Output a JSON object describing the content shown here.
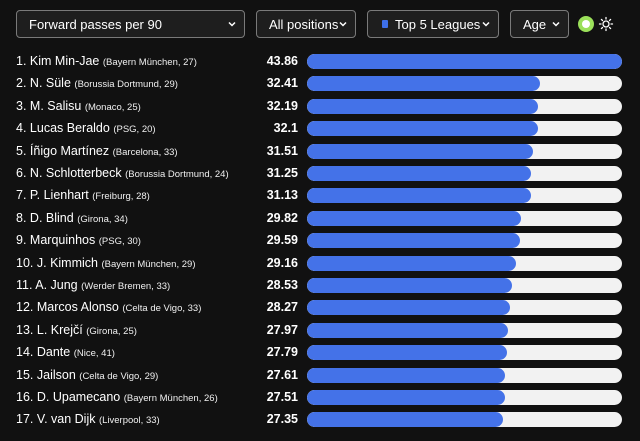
{
  "filters": {
    "metric": "Forward passes per 90",
    "position": "All positions",
    "league": "Top 5 Leagues",
    "age": "Age"
  },
  "colors": {
    "background": "#111111",
    "bar_fill": "#4472e8",
    "bar_track": "#f2f2f2",
    "toggle": "#9be05a"
  },
  "max_value": 43.86,
  "players": [
    {
      "rank": "1.",
      "name": "Kim Min-Jae",
      "meta": "(Bayern München, 27)",
      "value": "43.86"
    },
    {
      "rank": "2.",
      "name": "N. Süle",
      "meta": "(Borussia Dortmund, 29)",
      "value": "32.41"
    },
    {
      "rank": "3.",
      "name": "M. Salisu",
      "meta": "(Monaco, 25)",
      "value": "32.19"
    },
    {
      "rank": "4.",
      "name": "Lucas Beraldo",
      "meta": "(PSG, 20)",
      "value": "32.1"
    },
    {
      "rank": "5.",
      "name": "Íñigo Martínez",
      "meta": "(Barcelona, 33)",
      "value": "31.51"
    },
    {
      "rank": "6.",
      "name": "N. Schlotterbeck",
      "meta": "(Borussia Dortmund, 24)",
      "value": "31.25"
    },
    {
      "rank": "7.",
      "name": "P. Lienhart",
      "meta": "(Freiburg, 28)",
      "value": "31.13"
    },
    {
      "rank": "8.",
      "name": "D. Blind",
      "meta": "(Girona, 34)",
      "value": "29.82"
    },
    {
      "rank": "9.",
      "name": "Marquinhos",
      "meta": "(PSG, 30)",
      "value": "29.59"
    },
    {
      "rank": "10.",
      "name": "J. Kimmich",
      "meta": "(Bayern München, 29)",
      "value": "29.16"
    },
    {
      "rank": "11.",
      "name": "A. Jung",
      "meta": "(Werder Bremen, 33)",
      "value": "28.53"
    },
    {
      "rank": "12.",
      "name": "Marcos Alonso",
      "meta": "(Celta de Vigo, 33)",
      "value": "28.27"
    },
    {
      "rank": "13.",
      "name": "L. Krejčí",
      "meta": "(Girona, 25)",
      "value": "27.97"
    },
    {
      "rank": "14.",
      "name": "Dante",
      "meta": "(Nice, 41)",
      "value": "27.79"
    },
    {
      "rank": "15.",
      "name": "Jailson",
      "meta": "(Celta de Vigo, 29)",
      "value": "27.61"
    },
    {
      "rank": "16.",
      "name": "D. Upamecano",
      "meta": "(Bayern München, 26)",
      "value": "27.51"
    },
    {
      "rank": "17.",
      "name": "V. van Dijk",
      "meta": "(Liverpool, 33)",
      "value": "27.35"
    }
  ]
}
